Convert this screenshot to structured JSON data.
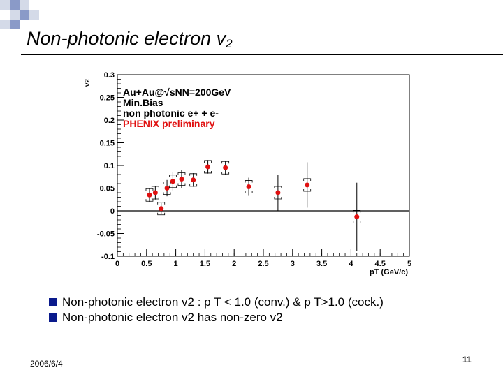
{
  "slide": {
    "title": "Non-photonic electron v",
    "title_sub": "2",
    "bullets": [
      "Non-photonic electron v2 : p T < 1.0 (conv.) & p T>1.0 (cock.)",
      "Non-photonic electron v2 has non-zero v2"
    ],
    "date": "2006/6/4",
    "page_number": "11",
    "colors": {
      "bullet": "#0a1a8c",
      "accent_square": "#8a9ac8",
      "light_square": "#d4dae8",
      "marker": "#e01010",
      "legend_red": "#e01010"
    }
  },
  "chart_data": {
    "type": "scatter",
    "xlabel": "pT (GeV/c)",
    "ylabel": "v2",
    "xlim": [
      0,
      5
    ],
    "ylim": [
      -0.1,
      0.3
    ],
    "xticks": [
      "0",
      "0.5",
      "1",
      "1.5",
      "2",
      "2.5",
      "3",
      "3.5",
      "4",
      "4.5",
      "5"
    ],
    "yticks": [
      "-0.1",
      "-0.05",
      "0",
      "0.05",
      "0.1",
      "0.15",
      "0.2",
      "0.25",
      "0.3"
    ],
    "legend": [
      "Au+Au@√sNN=200GeV",
      "Min.Bias",
      "non photonic e+ + e-",
      "PHENIX preliminary"
    ],
    "legend_placement": "top-left",
    "zero_line": true,
    "series": [
      {
        "points": [
          {
            "x": 0.55,
            "y": 0.035,
            "err": 0.015
          },
          {
            "x": 0.65,
            "y": 0.04,
            "err": 0.015
          },
          {
            "x": 0.75,
            "y": 0.005,
            "err": 0.012
          },
          {
            "x": 0.85,
            "y": 0.05,
            "err": 0.018
          },
          {
            "x": 0.95,
            "y": 0.065,
            "err": 0.02
          },
          {
            "x": 1.1,
            "y": 0.07,
            "err": 0.02
          },
          {
            "x": 1.3,
            "y": 0.068,
            "err": 0.015
          },
          {
            "x": 1.55,
            "y": 0.097,
            "err": 0.015
          },
          {
            "x": 1.85,
            "y": 0.095,
            "err": 0.015
          },
          {
            "x": 2.25,
            "y": 0.053,
            "err": 0.02
          },
          {
            "x": 2.75,
            "y": 0.04,
            "err": 0.04
          },
          {
            "x": 3.25,
            "y": 0.057,
            "err": 0.05
          },
          {
            "x": 4.1,
            "y": -0.013,
            "err": 0.075
          }
        ]
      }
    ]
  }
}
